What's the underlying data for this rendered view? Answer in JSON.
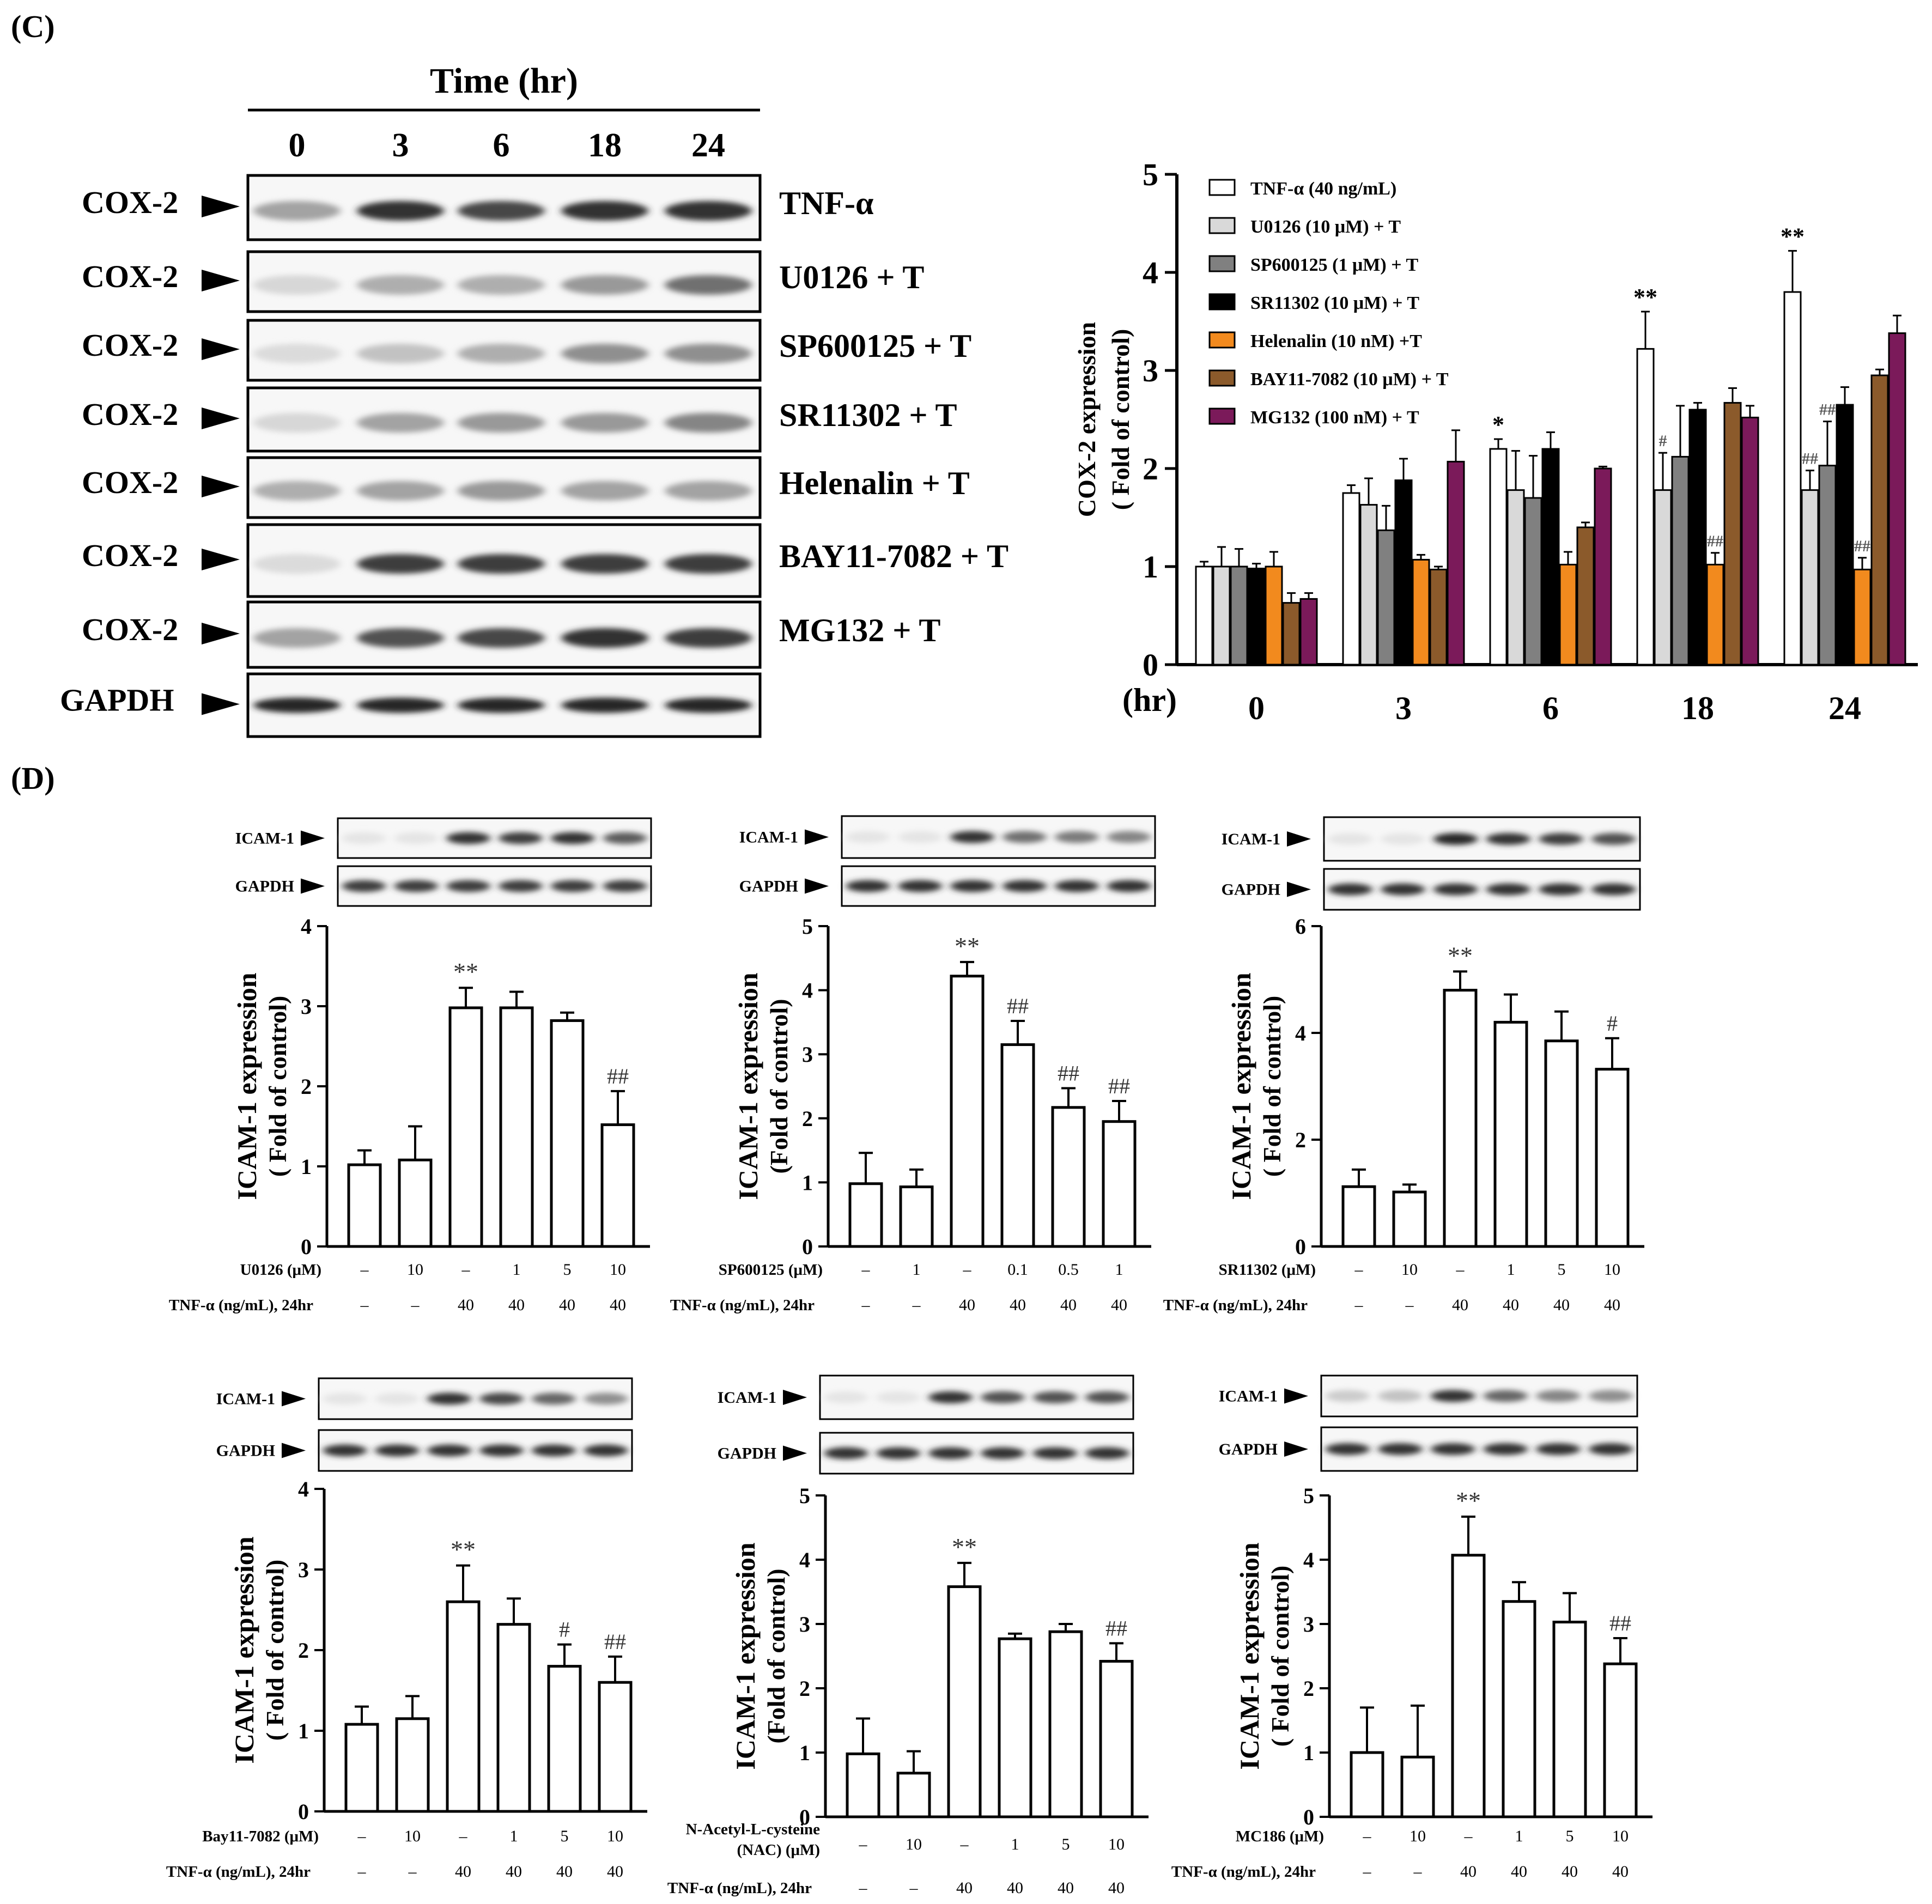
{
  "panels": {
    "c_label": "(C)",
    "d_label": "(D)"
  },
  "panel_c": {
    "time_header": "Time (hr)",
    "time_points": [
      "0",
      "3",
      "6",
      "18",
      "24"
    ],
    "blots": [
      {
        "protein": "COX-2",
        "treatment": "TNF-α",
        "bands": [
          0.35,
          0.9,
          0.8,
          0.9,
          0.9
        ]
      },
      {
        "protein": "COX-2",
        "treatment": "U0126 + T",
        "bands": [
          0.1,
          0.3,
          0.3,
          0.4,
          0.6
        ]
      },
      {
        "protein": "COX-2",
        "treatment": "SP600125 + T",
        "bands": [
          0.08,
          0.2,
          0.3,
          0.45,
          0.45
        ]
      },
      {
        "protein": "COX-2",
        "treatment": "SR11302 + T",
        "bands": [
          0.1,
          0.35,
          0.4,
          0.4,
          0.5
        ]
      },
      {
        "protein": "COX-2",
        "treatment": "Helenalin  + T",
        "bands": [
          0.3,
          0.35,
          0.4,
          0.35,
          0.35
        ]
      },
      {
        "protein": "COX-2",
        "treatment": "BAY11-7082 + T",
        "bands": [
          0.08,
          0.85,
          0.85,
          0.85,
          0.85
        ]
      },
      {
        "protein": "COX-2",
        "treatment": "MG132 + T",
        "bands": [
          0.35,
          0.75,
          0.8,
          0.9,
          0.85
        ]
      },
      {
        "protein": "GAPDH",
        "treatment": "",
        "bands": [
          0.95,
          0.95,
          0.95,
          0.95,
          0.95
        ]
      }
    ]
  },
  "chart_data": [
    {
      "id": "cox2",
      "type": "bar",
      "ylabel": "COX-2 expression",
      "ylabel2": "( Fold of control)",
      "xlabel": "(hr)",
      "categories": [
        "0",
        "3",
        "6",
        "18",
        "24"
      ],
      "ylim": [
        0,
        5
      ],
      "yticks": [
        "0",
        "1",
        "2",
        "3",
        "4",
        "5"
      ],
      "legend_position": "top-left",
      "series": [
        {
          "name": "TNF-α (40 ng/mL)",
          "color": "#ffffff",
          "values": [
            1.0,
            1.75,
            2.2,
            3.22,
            3.8
          ],
          "errors": [
            0.05,
            0.08,
            0.1,
            0.38,
            0.42
          ]
        },
        {
          "name": "U0126 (10 μM) + T",
          "color": "#d9d9d9",
          "values": [
            1.0,
            1.63,
            1.78,
            1.78,
            1.78
          ],
          "errors": [
            0.2,
            0.27,
            0.4,
            0.38,
            0.2
          ]
        },
        {
          "name": "SP600125 (1 μM) + T",
          "color": "#808080",
          "values": [
            1.0,
            1.37,
            1.7,
            2.12,
            2.03
          ],
          "errors": [
            0.18,
            0.25,
            0.43,
            0.52,
            0.45
          ]
        },
        {
          "name": "SR11302 (10 μM) + T",
          "color": "#000000",
          "values": [
            0.98,
            1.88,
            2.2,
            2.6,
            2.65
          ],
          "errors": [
            0.05,
            0.22,
            0.17,
            0.07,
            0.18
          ]
        },
        {
          "name": "Helenalin (10 nM) +T",
          "color": "#f28a1e",
          "values": [
            1.0,
            1.07,
            1.02,
            1.02,
            0.97
          ],
          "errors": [
            0.15,
            0.05,
            0.13,
            0.12,
            0.12
          ]
        },
        {
          "name": "BAY11-7082 (10 μM) + T",
          "color": "#8b5a2b",
          "values": [
            0.63,
            0.97,
            1.4,
            2.67,
            2.95
          ],
          "errors": [
            0.1,
            0.03,
            0.05,
            0.15,
            0.06
          ]
        },
        {
          "name": "MG132 (100 nM) + T",
          "color": "#7b1a5a",
          "values": [
            0.67,
            2.07,
            2.0,
            2.52,
            3.38
          ],
          "errors": [
            0.06,
            0.32,
            0.02,
            0.12,
            0.18
          ]
        }
      ],
      "annotations": [
        {
          "category": 2,
          "series": 0,
          "text": "*"
        },
        {
          "category": 3,
          "series": 0,
          "text": "**"
        },
        {
          "category": 4,
          "series": 0,
          "text": "**"
        },
        {
          "category": 3,
          "series": 1,
          "text": "#"
        },
        {
          "category": 3,
          "series": 4,
          "text": "##"
        },
        {
          "category": 4,
          "series": 1,
          "text": "##"
        },
        {
          "category": 4,
          "series": 2,
          "text": "##"
        },
        {
          "category": 4,
          "series": 4,
          "text": "##"
        }
      ]
    },
    {
      "id": "u0126",
      "type": "bar",
      "ylabel": "ICAM-1 expression",
      "ylabel2": "( Fold of control)",
      "ylim": [
        0,
        4
      ],
      "yticks": [
        "0",
        "1",
        "2",
        "3",
        "4"
      ],
      "values": [
        1.02,
        1.08,
        2.98,
        2.98,
        2.82,
        1.52
      ],
      "errors": [
        0.18,
        0.42,
        0.25,
        0.2,
        0.1,
        0.42
      ],
      "marks": [
        "",
        "",
        "**",
        "",
        "",
        "##"
      ],
      "row1_label": "U0126 (μM)",
      "row1": [
        "–",
        "10",
        "–",
        "1",
        "5",
        "10"
      ],
      "row2_label": "TNF-α (ng/mL), 24hr",
      "row2": [
        "–",
        "–",
        "40",
        "40",
        "40",
        "40"
      ],
      "blots": [
        {
          "name": "ICAM-1",
          "bands": [
            0.03,
            0.03,
            0.9,
            0.85,
            0.9,
            0.7
          ]
        },
        {
          "name": "GAPDH",
          "bands": [
            0.85,
            0.85,
            0.85,
            0.85,
            0.85,
            0.85
          ]
        }
      ]
    },
    {
      "id": "sp600125",
      "type": "bar",
      "ylabel": "ICAM-1 expression",
      "ylabel2": "(Fold of control)",
      "ylim": [
        0,
        5
      ],
      "yticks": [
        "0",
        "1",
        "2",
        "3",
        "4",
        "5"
      ],
      "values": [
        0.98,
        0.93,
        4.22,
        3.15,
        2.17,
        1.95
      ],
      "errors": [
        0.48,
        0.27,
        0.22,
        0.37,
        0.3,
        0.32
      ],
      "marks": [
        "",
        "",
        "**",
        "##",
        "##",
        "##"
      ],
      "row1_label": "SP600125 (μM)",
      "row1": [
        "–",
        "1",
        "–",
        "0.1",
        "0.5",
        "1"
      ],
      "row2_label": "TNF-α (ng/mL), 24hr",
      "row2": [
        "–",
        "–",
        "40",
        "40",
        "40",
        "40"
      ],
      "blots": [
        {
          "name": "ICAM-1",
          "bands": [
            0.03,
            0.03,
            0.9,
            0.6,
            0.55,
            0.5
          ]
        },
        {
          "name": "GAPDH",
          "bands": [
            0.9,
            0.9,
            0.9,
            0.9,
            0.9,
            0.9
          ]
        }
      ]
    },
    {
      "id": "sr11302",
      "type": "bar",
      "ylabel": "ICAM-1 expression",
      "ylabel2": "( Fold of control)",
      "ylim": [
        0,
        6
      ],
      "yticks": [
        "0",
        "2",
        "4",
        "6"
      ],
      "values": [
        1.12,
        1.02,
        4.8,
        4.2,
        3.85,
        3.32
      ],
      "errors": [
        0.32,
        0.14,
        0.35,
        0.52,
        0.55,
        0.58
      ],
      "marks": [
        "",
        "",
        "**",
        "",
        "",
        "#"
      ],
      "row1_label": "SR11302 (μM)",
      "row1": [
        "–",
        "10",
        "–",
        "1",
        "5",
        "10"
      ],
      "row2_label": "TNF-α (ng/mL), 24hr",
      "row2": [
        "–",
        "–",
        "40",
        "40",
        "40",
        "40"
      ],
      "blots": [
        {
          "name": "ICAM-1",
          "bands": [
            0.03,
            0.03,
            0.95,
            0.9,
            0.85,
            0.75
          ]
        },
        {
          "name": "GAPDH",
          "bands": [
            0.9,
            0.9,
            0.9,
            0.9,
            0.9,
            0.9
          ]
        }
      ]
    },
    {
      "id": "bay",
      "type": "bar",
      "ylabel": "ICAM-1 expression",
      "ylabel2": "( Fold of control)",
      "ylim": [
        0,
        4
      ],
      "yticks": [
        "0",
        "1",
        "2",
        "3",
        "4"
      ],
      "values": [
        1.08,
        1.15,
        2.6,
        2.32,
        1.8,
        1.6
      ],
      "errors": [
        0.22,
        0.28,
        0.45,
        0.32,
        0.27,
        0.32
      ],
      "marks": [
        "",
        "",
        "**",
        "",
        "#",
        "##"
      ],
      "row1_label": "Bay11-7082 (μM)",
      "row1": [
        "–",
        "10",
        "–",
        "1",
        "5",
        "10"
      ],
      "row2_label": "TNF-α (ng/mL), 24hr",
      "row2": [
        "–",
        "–",
        "40",
        "40",
        "40",
        "40"
      ],
      "blots": [
        {
          "name": "ICAM-1",
          "bands": [
            0.03,
            0.03,
            0.9,
            0.8,
            0.65,
            0.45
          ]
        },
        {
          "name": "GAPDH",
          "bands": [
            0.9,
            0.9,
            0.9,
            0.9,
            0.9,
            0.9
          ]
        }
      ]
    },
    {
      "id": "nac",
      "type": "bar",
      "ylabel": "ICAM-1 expression",
      "ylabel2": "(Fold of control)",
      "ylim": [
        0,
        5
      ],
      "yticks": [
        "0",
        "1",
        "2",
        "3",
        "4",
        "5"
      ],
      "values": [
        0.98,
        0.68,
        3.58,
        2.77,
        2.88,
        2.42
      ],
      "errors": [
        0.55,
        0.34,
        0.37,
        0.08,
        0.12,
        0.28
      ],
      "marks": [
        "",
        "",
        "**",
        "",
        "",
        "##"
      ],
      "row1_label": "N-Acetyl-L-cysteine",
      "row1_label2": "(NAC) (μM)",
      "row1": [
        "–",
        "10",
        "–",
        "1",
        "5",
        "10"
      ],
      "row2_label": "TNF-α (ng/mL), 24hr",
      "row2": [
        "–",
        "–",
        "40",
        "40",
        "40",
        "40"
      ],
      "blots": [
        {
          "name": "ICAM-1",
          "bands": [
            0.03,
            0.03,
            0.9,
            0.75,
            0.75,
            0.75
          ]
        },
        {
          "name": "GAPDH",
          "bands": [
            0.9,
            0.9,
            0.9,
            0.9,
            0.9,
            0.9
          ]
        }
      ]
    },
    {
      "id": "mc186",
      "type": "bar",
      "ylabel": "ICAM-1 expression",
      "ylabel2": "( Fold of control)",
      "ylim": [
        0,
        5
      ],
      "yticks": [
        "0",
        "1",
        "2",
        "3",
        "4",
        "5"
      ],
      "values": [
        1.0,
        0.93,
        4.07,
        3.35,
        3.03,
        2.38
      ],
      "errors": [
        0.7,
        0.8,
        0.6,
        0.3,
        0.45,
        0.4
      ],
      "marks": [
        "",
        "",
        "**",
        "",
        "",
        "##"
      ],
      "row1_label": "MC186 (μM)",
      "row1": [
        "–",
        "10",
        "–",
        "1",
        "5",
        "10"
      ],
      "row2_label": "TNF-α (ng/mL), 24hr",
      "row2": [
        "–",
        "–",
        "40",
        "40",
        "40",
        "40"
      ],
      "blots": [
        {
          "name": "ICAM-1",
          "bands": [
            0.15,
            0.2,
            0.9,
            0.65,
            0.5,
            0.45
          ]
        },
        {
          "name": "GAPDH",
          "bands": [
            0.9,
            0.9,
            0.9,
            0.9,
            0.9,
            0.9
          ]
        }
      ]
    }
  ]
}
